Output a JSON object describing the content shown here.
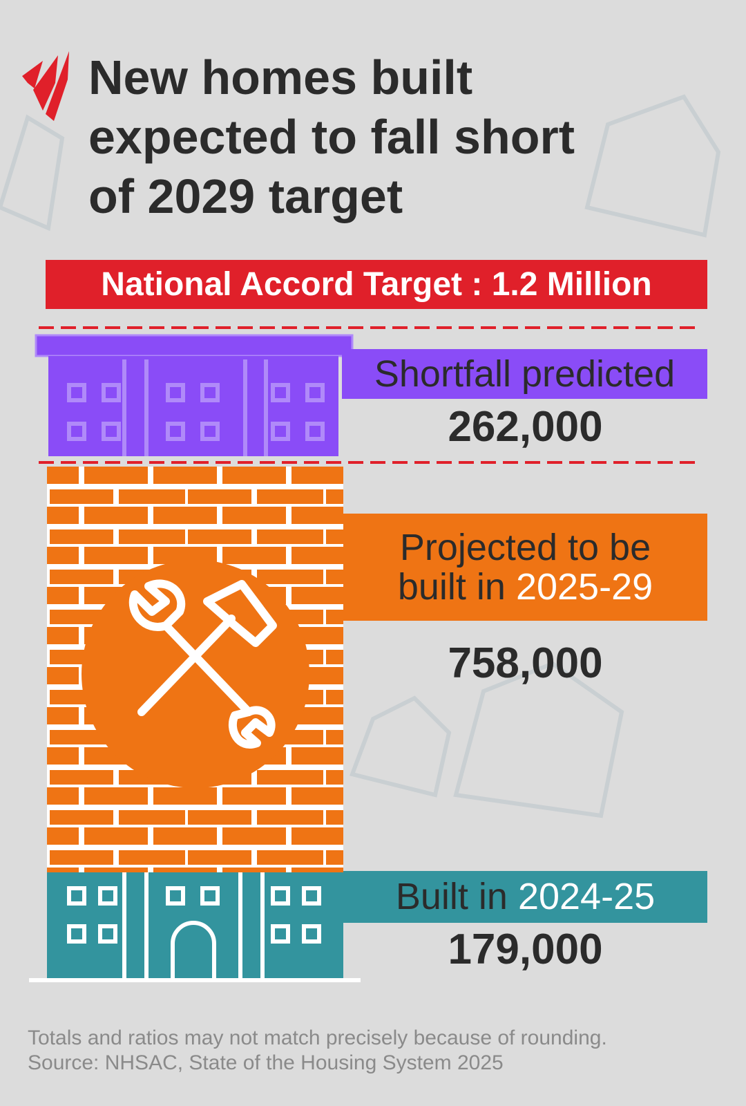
{
  "title": {
    "lines": [
      "New homes built",
      "expected to fall short",
      "of 2029 target"
    ]
  },
  "target_banner": "National Accord Target : 1.2 Million",
  "sections": [
    {
      "label": "Shortfall predicted",
      "value": "262,000"
    },
    {
      "label": "Projected to be built in",
      "label_highlight": "2025-29",
      "value": "758,000"
    },
    {
      "label": "Built in",
      "label_highlight": "2024-25",
      "value": "179,000"
    }
  ],
  "footnote": {
    "lines": [
      "Totals and ratios may not match precisely because of rounding.",
      "Source: NHSAC, State of the Housing System 2025"
    ]
  }
}
